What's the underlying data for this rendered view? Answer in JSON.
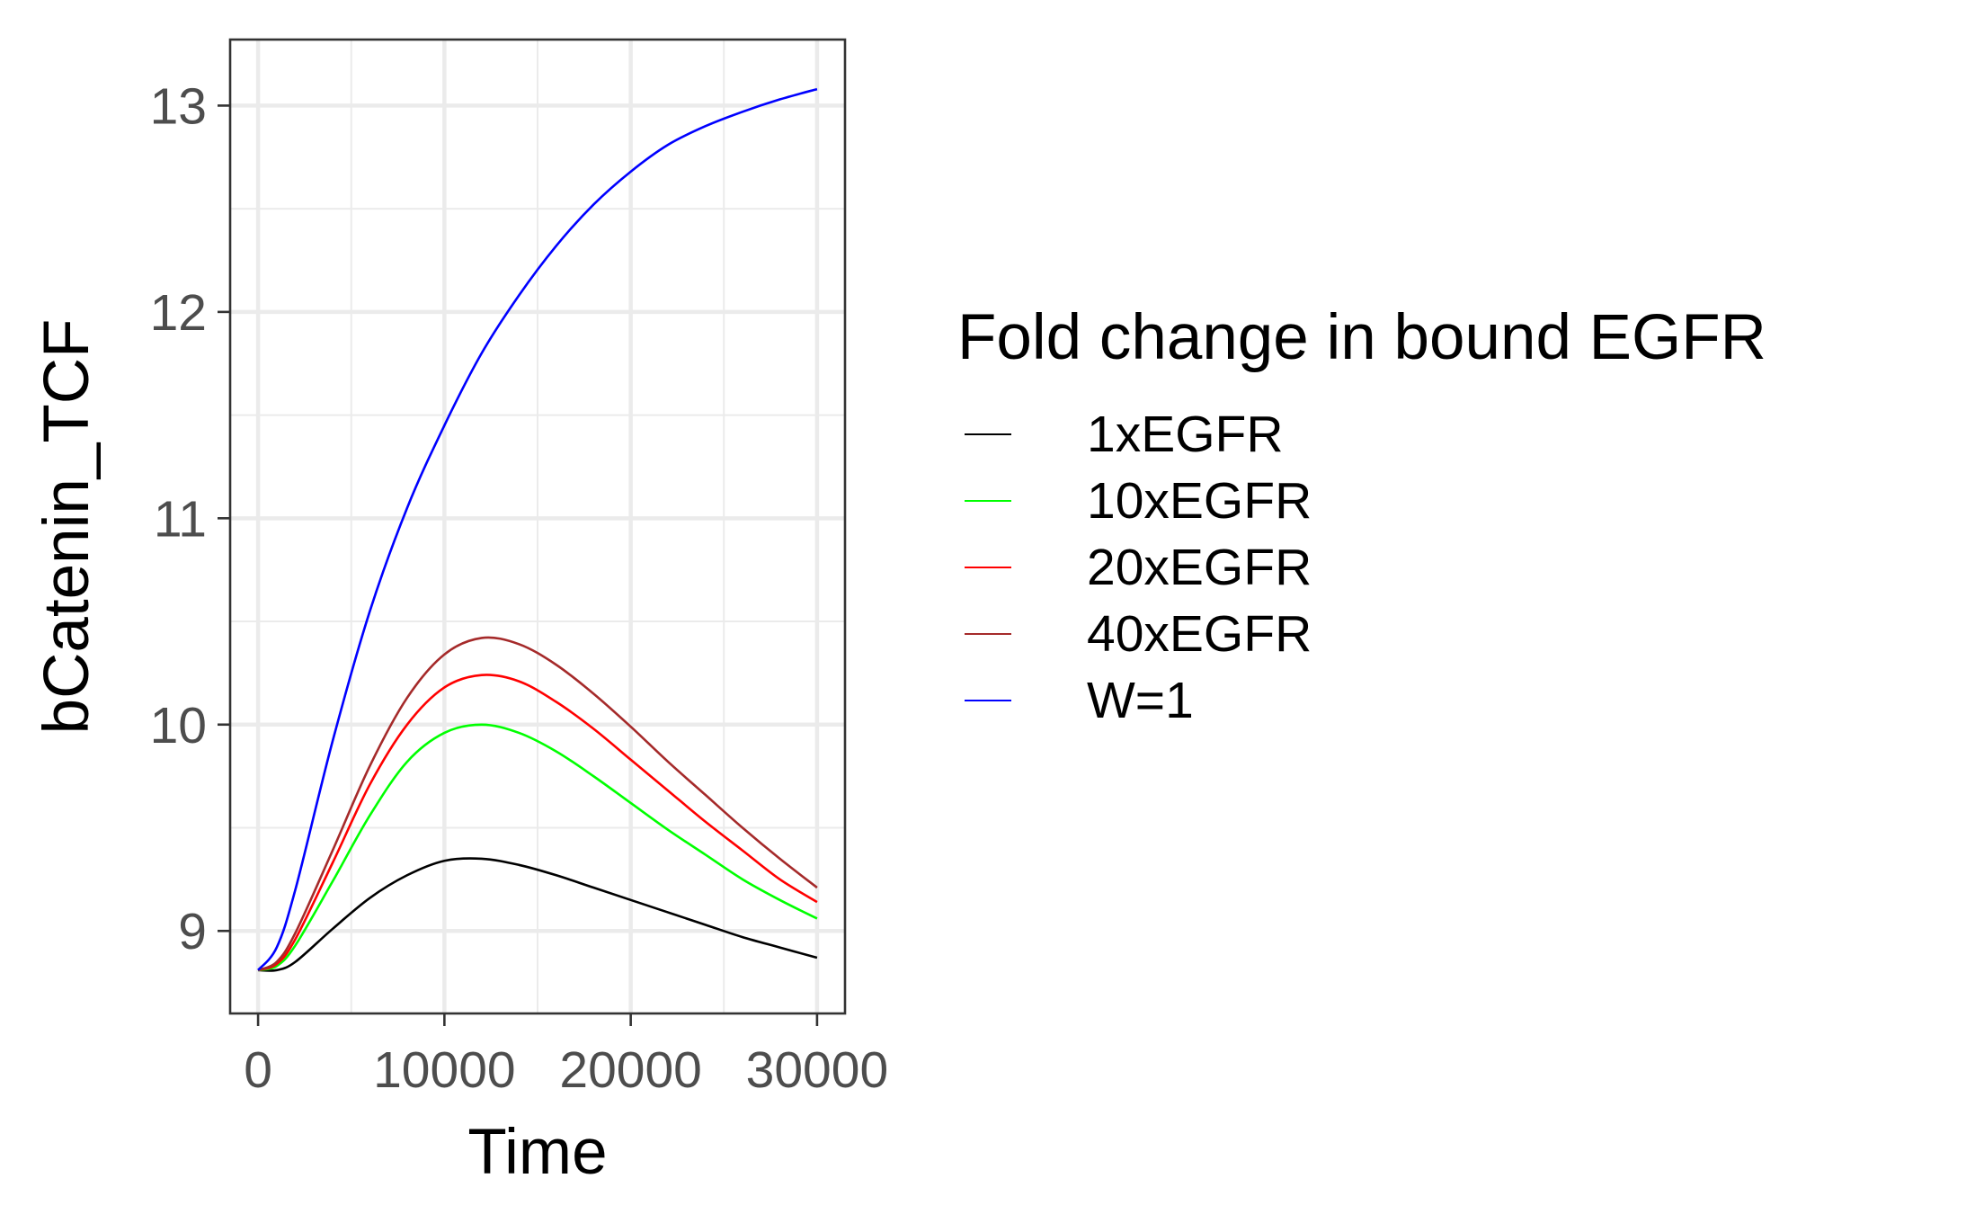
{
  "chart_data": {
    "type": "line",
    "title": "",
    "xlabel": "Time",
    "ylabel": "bCatenin_TCF",
    "xlim": [
      -1500,
      31500
    ],
    "ylim": [
      8.6,
      13.32
    ],
    "x_ticks": [
      0,
      10000,
      20000,
      30000
    ],
    "x_tick_labels": [
      "0",
      "10000",
      "20000",
      "30000"
    ],
    "y_ticks": [
      9,
      10,
      11,
      12,
      13
    ],
    "y_tick_labels": [
      "9",
      "10",
      "11",
      "12",
      "13"
    ],
    "grid": true,
    "legend_title": "Fold change in bound EGFR",
    "legend_position": "right",
    "x": [
      0,
      1000,
      2000,
      4000,
      6000,
      8000,
      10000,
      12000,
      14000,
      16000,
      18000,
      20000,
      22000,
      24000,
      26000,
      28000,
      30000
    ],
    "series": [
      {
        "name": "1xEGFR",
        "color": "#000000",
        "values": [
          8.81,
          8.81,
          8.85,
          9.01,
          9.16,
          9.27,
          9.34,
          9.35,
          9.32,
          9.27,
          9.21,
          9.15,
          9.09,
          9.03,
          8.97,
          8.92,
          8.87
        ]
      },
      {
        "name": "10xEGFR",
        "color": "#00ff00",
        "values": [
          8.81,
          8.83,
          8.93,
          9.24,
          9.56,
          9.82,
          9.96,
          10.0,
          9.96,
          9.87,
          9.75,
          9.62,
          9.49,
          9.37,
          9.25,
          9.15,
          9.06
        ]
      },
      {
        "name": "20xEGFR",
        "color": "#ff0000",
        "values": [
          8.81,
          8.84,
          8.96,
          9.33,
          9.71,
          10.0,
          10.18,
          10.24,
          10.21,
          10.11,
          9.98,
          9.83,
          9.68,
          9.53,
          9.39,
          9.25,
          9.14
        ]
      },
      {
        "name": "40xEGFR",
        "color": "#a52a2a",
        "values": [
          8.81,
          8.85,
          8.99,
          9.39,
          9.8,
          10.13,
          10.34,
          10.42,
          10.39,
          10.29,
          10.15,
          9.99,
          9.82,
          9.66,
          9.5,
          9.35,
          9.21
        ]
      },
      {
        "name": "W=1",
        "color": "#0000ff",
        "values": [
          8.81,
          8.92,
          9.2,
          9.92,
          10.55,
          11.05,
          11.45,
          11.8,
          12.08,
          12.32,
          12.52,
          12.68,
          12.81,
          12.9,
          12.97,
          13.03,
          13.08
        ]
      }
    ]
  }
}
